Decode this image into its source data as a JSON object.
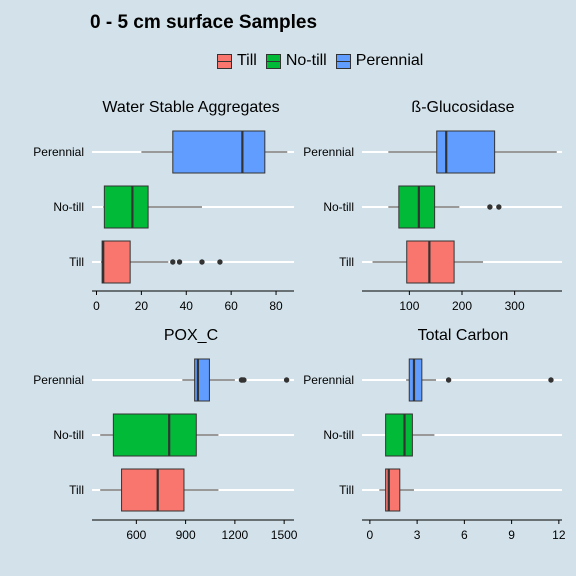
{
  "title": "0 - 5 cm surface Samples",
  "legend": [
    {
      "label": "Till",
      "color": "#f8766d"
    },
    {
      "label": "No-till",
      "color": "#00ba38"
    },
    {
      "label": "Perennial",
      "color": "#619cff"
    }
  ],
  "chart_data": [
    {
      "type": "boxplot",
      "orientation": "horizontal",
      "title": "Water Stable Aggregates",
      "categories": [
        "Till",
        "No-till",
        "Perennial"
      ],
      "xlim": [
        -2,
        88
      ],
      "ticks": [
        0,
        20,
        40,
        60,
        80
      ],
      "boxes": [
        {
          "group": "Till",
          "whisker_low": 2,
          "q1": 2.5,
          "median": 3,
          "q3": 15,
          "whisker_high": 32,
          "outliers": [
            34,
            37,
            47,
            55
          ]
        },
        {
          "group": "No-till",
          "whisker_low": 3,
          "q1": 3.5,
          "median": 16,
          "q3": 23,
          "whisker_high": 47,
          "outliers": []
        },
        {
          "group": "Perennial",
          "whisker_low": 20,
          "q1": 34,
          "median": 65,
          "q3": 75,
          "whisker_high": 85,
          "outliers": []
        }
      ]
    },
    {
      "type": "boxplot",
      "orientation": "horizontal",
      "title": "ß-Glucosidase",
      "categories": [
        "Till",
        "No-till",
        "Perennial"
      ],
      "xlim": [
        10,
        390
      ],
      "ticks": [
        100,
        200,
        300
      ],
      "boxes": [
        {
          "group": "Till",
          "whisker_low": 30,
          "q1": 95,
          "median": 138,
          "q3": 185,
          "whisker_high": 240,
          "outliers": []
        },
        {
          "group": "No-till",
          "whisker_low": 60,
          "q1": 80,
          "median": 118,
          "q3": 148,
          "whisker_high": 195,
          "outliers": [
            253,
            270
          ]
        },
        {
          "group": "Perennial",
          "whisker_low": 60,
          "q1": 152,
          "median": 170,
          "q3": 262,
          "whisker_high": 380,
          "outliers": []
        }
      ]
    },
    {
      "type": "boxplot",
      "orientation": "horizontal",
      "title": "POX_C",
      "categories": [
        "Till",
        "No-till",
        "Perennial"
      ],
      "xlim": [
        330,
        1560
      ],
      "ticks": [
        600,
        900,
        1200,
        1500
      ],
      "boxes": [
        {
          "group": "Till",
          "whisker_low": 380,
          "q1": 510,
          "median": 730,
          "q3": 890,
          "whisker_high": 1100,
          "outliers": []
        },
        {
          "group": "No-till",
          "whisker_low": 380,
          "q1": 460,
          "median": 800,
          "q3": 965,
          "whisker_high": 1100,
          "outliers": []
        },
        {
          "group": "Perennial",
          "whisker_low": 880,
          "q1": 955,
          "median": 975,
          "q3": 1045,
          "whisker_high": 1200,
          "outliers": [
            1240,
            1245,
            1255,
            1515
          ]
        }
      ]
    },
    {
      "type": "boxplot",
      "orientation": "horizontal",
      "title": "Total Carbon",
      "categories": [
        "Till",
        "No-till",
        "Perennial"
      ],
      "xlim": [
        -0.5,
        12.2
      ],
      "ticks": [
        0,
        3,
        6,
        9,
        12
      ],
      "boxes": [
        {
          "group": "Till",
          "whisker_low": 0.6,
          "q1": 1.0,
          "median": 1.2,
          "q3": 1.9,
          "whisker_high": 2.8,
          "outliers": []
        },
        {
          "group": "No-till",
          "whisker_low": 1.0,
          "q1": 1.0,
          "median": 2.2,
          "q3": 2.7,
          "whisker_high": 4.1,
          "outliers": []
        },
        {
          "group": "Perennial",
          "whisker_low": 2.3,
          "q1": 2.5,
          "median": 2.8,
          "q3": 3.3,
          "whisker_high": 4.2,
          "outliers": [
            5.0,
            11.5
          ]
        }
      ]
    }
  ]
}
